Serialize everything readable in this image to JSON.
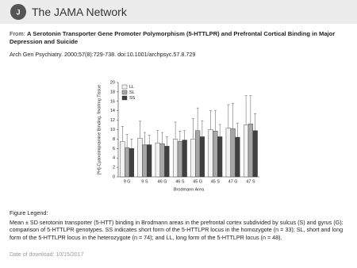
{
  "header": {
    "brand": "The JAMA Network"
  },
  "figure": {
    "from_label": "From:",
    "title": "A Serotonin Transporter Gene Promoter Polymorphism (5-HTTLPR) and Prefrontal Cortical Binding in Major Depression and Suicide",
    "citation": "Arch Gen Psychiatry. 2000;57(8):729-738. doi:10.1001/archpsyc.57.8.729"
  },
  "chart_data": {
    "type": "bar",
    "y_label": "[³H]-Cyanoimipramine Binding, fmol/mg Tissue",
    "x_label": "Brodmann Area",
    "categories": [
      "9 G",
      "9 S",
      "46 G",
      "46 S",
      "45 G",
      "45 S",
      "47 G",
      "47 S"
    ],
    "series": [
      {
        "name": "LL",
        "color": "#f2f2f2",
        "values": [
          7.5,
          8.2,
          7.2,
          8.0,
          8.0,
          10.0,
          10.3,
          11.0
        ],
        "errors": [
          3.2,
          3.6,
          2.6,
          3.6,
          4.4,
          4.0,
          5.0,
          6.2
        ]
      },
      {
        "name": "SL",
        "color": "#a6a6a6",
        "values": [
          6.2,
          6.8,
          7.0,
          7.5,
          9.8,
          9.7,
          10.2,
          11.2
        ],
        "errors": [
          2.8,
          2.6,
          2.4,
          2.2,
          4.8,
          4.4,
          5.4,
          6.0
        ]
      },
      {
        "name": "SS",
        "color": "#404040",
        "values": [
          6.0,
          6.8,
          6.5,
          7.8,
          8.5,
          8.5,
          8.4,
          9.8
        ],
        "errors": [
          2.0,
          2.0,
          2.0,
          2.0,
          3.4,
          2.6,
          3.0,
          3.6
        ]
      }
    ],
    "ylim": [
      0,
      20
    ],
    "yticks": [
      0,
      2,
      4,
      6,
      8,
      10,
      12,
      14,
      16,
      18,
      20
    ],
    "grid": false,
    "legend": "top-left"
  },
  "legend": {
    "heading": "Figure Legend:",
    "caption": "Mean ± SD serotonin transporter (5-HTT) binding in Brodmann areas in the prefrontal cortex subdivided by sulcus (S) and gyrus (G): comparison of 5-HTTLPR genotypes. SS indicates short form of the 5-HTTLPR locus in the homozygote (n = 33); SL, short and long form of the 5-HTTLPR locus in the heterozygote (n = 74); and LL, long form of the 5-HTTLPR locus (n = 48)."
  },
  "footer": {
    "label": "Date of download:",
    "date": "10/15/2017"
  }
}
